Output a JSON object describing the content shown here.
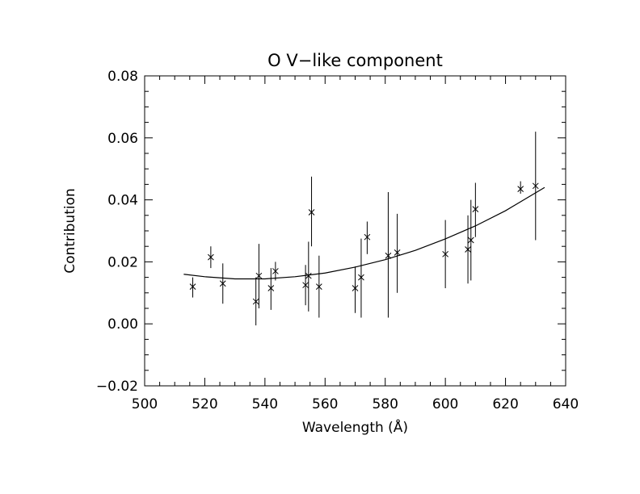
{
  "chart_data": {
    "type": "scatter",
    "title": "O V−like component",
    "xlabel": "Wavelength (Å)",
    "ylabel": "Contribution",
    "xlim": [
      500,
      640
    ],
    "ylim": [
      -0.02,
      0.08
    ],
    "xticks": [
      500,
      520,
      540,
      560,
      580,
      600,
      620,
      640
    ],
    "xtick_labels": [
      "500",
      "520",
      "540",
      "560",
      "580",
      "600",
      "620",
      "640"
    ],
    "yticks": [
      -0.02,
      0.0,
      0.02,
      0.04,
      0.06,
      0.08
    ],
    "ytick_labels": [
      "−0.02",
      "0.00",
      "0.02",
      "0.04",
      "0.06",
      "0.08"
    ],
    "grid": false,
    "legend": "none",
    "color": "#000000",
    "series": [
      {
        "marker": "x",
        "points": [
          {
            "x": 516.0,
            "y": 0.012,
            "err_low": 0.0085,
            "err_high": 0.015
          },
          {
            "x": 522.0,
            "y": 0.0215,
            "err_low": 0.018,
            "err_high": 0.025
          },
          {
            "x": 526.0,
            "y": 0.013,
            "err_low": 0.0065,
            "err_high": 0.0195
          },
          {
            "x": 537.0,
            "y": 0.0072,
            "err_low": -0.0005,
            "err_high": 0.015
          },
          {
            "x": 538.0,
            "y": 0.0155,
            "err_low": 0.005,
            "err_high": 0.0258
          },
          {
            "x": 542.0,
            "y": 0.0115,
            "err_low": 0.0045,
            "err_high": 0.018
          },
          {
            "x": 543.5,
            "y": 0.017,
            "err_low": 0.014,
            "err_high": 0.02
          },
          {
            "x": 553.5,
            "y": 0.0125,
            "err_low": 0.006,
            "err_high": 0.019
          },
          {
            "x": 554.5,
            "y": 0.0155,
            "err_low": 0.004,
            "err_high": 0.0265
          },
          {
            "x": 555.5,
            "y": 0.036,
            "err_low": 0.025,
            "err_high": 0.0475
          },
          {
            "x": 558.0,
            "y": 0.012,
            "err_low": 0.002,
            "err_high": 0.022
          },
          {
            "x": 570.0,
            "y": 0.0115,
            "err_low": 0.0035,
            "err_high": 0.0185
          },
          {
            "x": 572.0,
            "y": 0.015,
            "err_low": 0.002,
            "err_high": 0.0275
          },
          {
            "x": 574.0,
            "y": 0.028,
            "err_low": 0.0225,
            "err_high": 0.033
          },
          {
            "x": 581.0,
            "y": 0.022,
            "err_low": 0.002,
            "err_high": 0.0425
          },
          {
            "x": 584.0,
            "y": 0.023,
            "err_low": 0.01,
            "err_high": 0.0355
          },
          {
            "x": 600.0,
            "y": 0.0225,
            "err_low": 0.0115,
            "err_high": 0.0335
          },
          {
            "x": 607.5,
            "y": 0.024,
            "err_low": 0.013,
            "err_high": 0.035
          },
          {
            "x": 608.5,
            "y": 0.027,
            "err_low": 0.014,
            "err_high": 0.04
          },
          {
            "x": 610.0,
            "y": 0.037,
            "err_low": 0.028,
            "err_high": 0.0455
          },
          {
            "x": 625.0,
            "y": 0.0435,
            "err_low": 0.042,
            "err_high": 0.046
          },
          {
            "x": 630.0,
            "y": 0.0445,
            "err_low": 0.027,
            "err_high": 0.062
          }
        ]
      },
      {
        "marker": "line",
        "x": [
          513,
          520,
          530,
          540,
          550,
          560,
          570,
          580,
          590,
          600,
          610,
          620,
          633
        ],
        "y": [
          0.016,
          0.0152,
          0.0145,
          0.0145,
          0.0152,
          0.0164,
          0.0183,
          0.0207,
          0.0237,
          0.0274,
          0.0316,
          0.0365,
          0.044
        ]
      }
    ]
  }
}
